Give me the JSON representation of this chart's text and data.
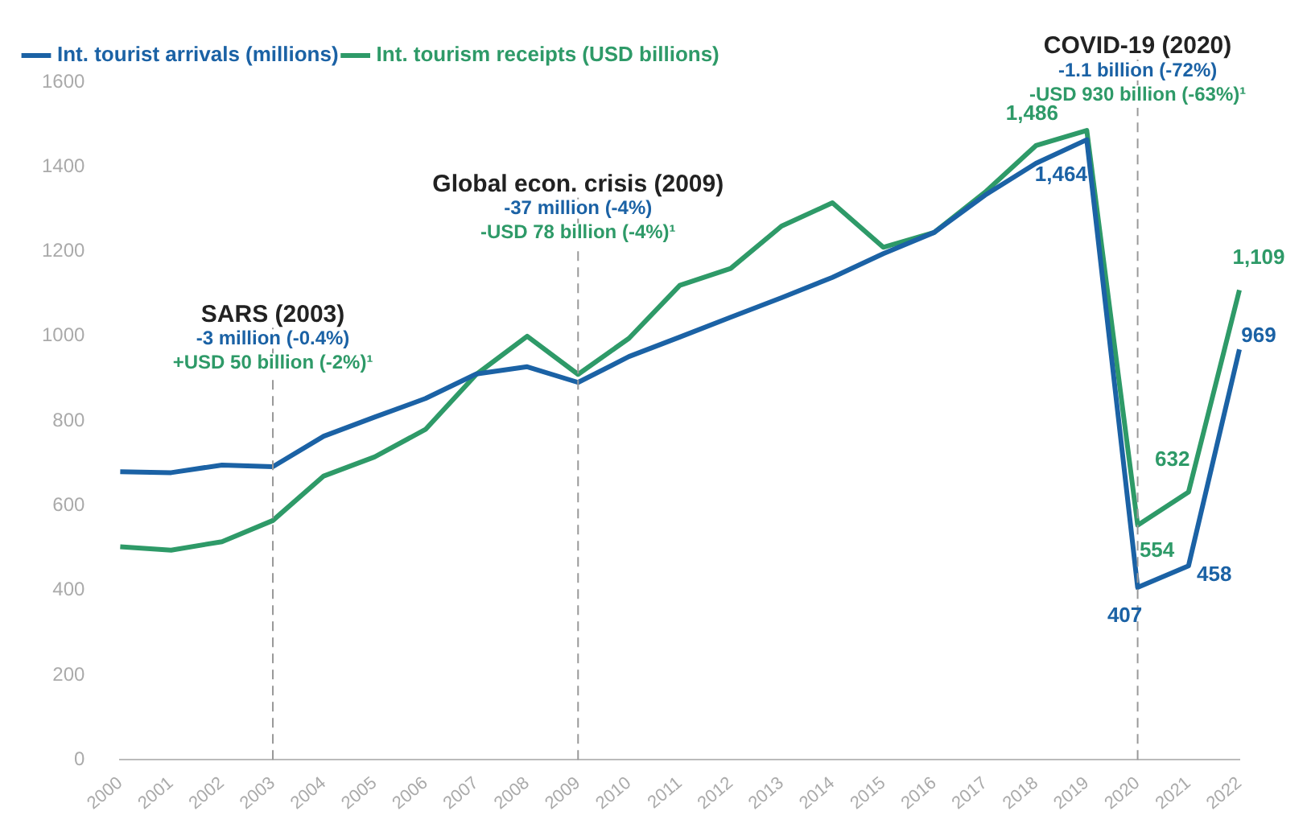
{
  "chart_data": {
    "type": "line",
    "categories": [
      "2000",
      "2001",
      "2002",
      "2003",
      "2004",
      "2005",
      "2006",
      "2007",
      "2008",
      "2009",
      "2010",
      "2011",
      "2012",
      "2013",
      "2014",
      "2015",
      "2016",
      "2017",
      "2018",
      "2019",
      "2020",
      "2021",
      "2022"
    ],
    "series": [
      {
        "name": "Int. tourist arrivals (millions)",
        "color": "#1b62a5",
        "values": [
          680,
          678,
          696,
          692,
          764,
          809,
          853,
          911,
          928,
          891,
          952,
          998,
          1045,
          1091,
          1139,
          1195,
          1245,
          1333,
          1408,
          1464,
          407,
          458,
          969
        ],
        "value_labels": [
          null,
          null,
          null,
          null,
          null,
          null,
          null,
          null,
          null,
          null,
          null,
          null,
          null,
          null,
          null,
          null,
          null,
          null,
          null,
          "1,464",
          "407",
          "458",
          "969"
        ]
      },
      {
        "name": "Int. tourism receipts (USD billions)",
        "color": "#2e9a68",
        "values": [
          503,
          495,
          515,
          565,
          670,
          715,
          780,
          910,
          1000,
          910,
          995,
          1120,
          1160,
          1260,
          1315,
          1210,
          1245,
          1340,
          1450,
          1486,
          554,
          632,
          1109
        ],
        "value_labels": [
          null,
          null,
          null,
          null,
          null,
          null,
          null,
          null,
          null,
          null,
          null,
          null,
          null,
          null,
          null,
          null,
          null,
          null,
          null,
          "1,486",
          "554",
          "632",
          "1,109"
        ]
      }
    ],
    "ylim": [
      0,
      1600
    ],
    "yticks": [
      0,
      200,
      400,
      600,
      800,
      1000,
      1200,
      1400,
      1600
    ],
    "grid": false,
    "legend": "top left",
    "marker": "none",
    "line_style": "solid",
    "ref_lines": [
      {
        "axis": "x",
        "value": "2003",
        "label": "SARS (2003)",
        "color": "#999999",
        "line_style": "dashed"
      },
      {
        "axis": "x",
        "value": "2009",
        "label": "Global econ. crisis (2009)",
        "color": "#999999",
        "line_style": "dashed"
      },
      {
        "axis": "x",
        "value": "2020",
        "label": "COVID-19 (2020)",
        "color": "#999999",
        "line_style": "dashed"
      }
    ],
    "annotations": [
      "-3 million (-0.4%)",
      "+USD 50 billion (-2%)¹",
      "-37 million (-4%)",
      "-USD 78 billion (-4%)¹",
      "-1.1 billion (-72%)",
      "-USD 930 billion (-63%)¹"
    ]
  }
}
